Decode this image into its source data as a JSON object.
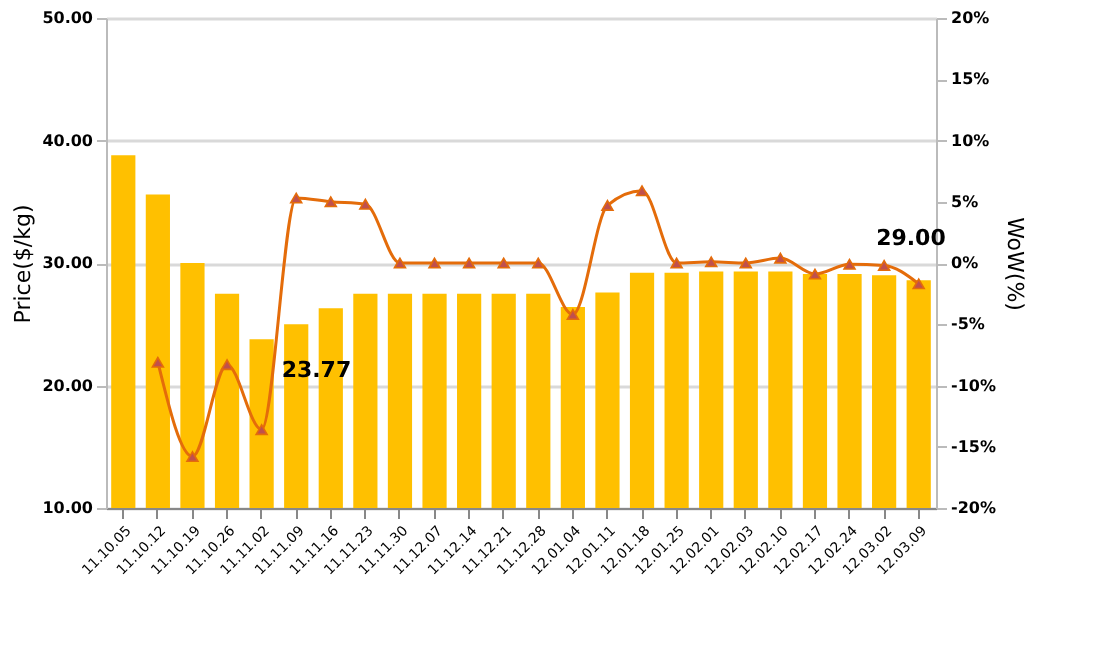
{
  "chart_data": {
    "type": "bar",
    "ylabel": "Price($/kg)",
    "y2label": "WoW(%)",
    "categories": [
      "11.10.05",
      "11.10.12",
      "11.10.19",
      "11.10.26",
      "11.11.02",
      "11.11.09",
      "11.11.16",
      "11.11.23",
      "11.11.30",
      "11.12.07",
      "11.12.14",
      "11.12.21",
      "11.12.28",
      "12.01.04",
      "12.01.11",
      "12.01.18",
      "12.01.25",
      "12.02.01",
      "12.02.03",
      "12.02.10",
      "12.02.17",
      "12.02.24",
      "12.03.02",
      "12.03.09"
    ],
    "series": [
      {
        "color": "#ffc000",
        "values": [
          38.8,
          35.6,
          30.0,
          27.5,
          23.77,
          25.0,
          26.3,
          27.5,
          27.5,
          27.5,
          27.5,
          27.5,
          27.5,
          26.4,
          27.6,
          29.2,
          29.2,
          29.3,
          29.3,
          29.3,
          29.1,
          29.1,
          29.0,
          28.6
        ]
      },
      {
        "type": "line",
        "axis": "y2",
        "color": "#e46c0a",
        "marker": "triangle",
        "values": [
          null,
          -8.1,
          -15.8,
          -8.3,
          -13.6,
          5.3,
          5.0,
          4.8,
          0,
          0,
          0,
          0,
          0,
          -4.2,
          4.7,
          5.9,
          0,
          0.1,
          0,
          0.4,
          -0.9,
          -0.1,
          -0.2,
          -1.7
        ]
      }
    ],
    "ylim": [
      10,
      50
    ],
    "yticks": [
      {
        "value": 10,
        "label": "10.00"
      },
      {
        "value": 20,
        "label": "20.00"
      },
      {
        "value": 30,
        "label": "30.00"
      },
      {
        "value": 40,
        "label": "40.00"
      },
      {
        "value": 50,
        "label": "50.00"
      }
    ],
    "y2lim": [
      -20,
      20
    ],
    "y2ticks": [
      {
        "value": -20,
        "label": "-20%"
      },
      {
        "value": -15,
        "label": "-15%"
      },
      {
        "value": -10,
        "label": "-10%"
      },
      {
        "value": -5,
        "label": "-5%"
      },
      {
        "value": 0,
        "label": "0%"
      },
      {
        "value": 5,
        "label": "5%"
      },
      {
        "value": 10,
        "label": "10%"
      },
      {
        "value": 15,
        "label": "15%"
      },
      {
        "value": 20,
        "label": "20%"
      }
    ],
    "grid": "y",
    "annotations": [
      {
        "text": "23.77",
        "x": "11.11.02",
        "y": 23.77
      },
      {
        "text": "29.00",
        "x": "12.03.02",
        "y": 29.0
      }
    ]
  }
}
